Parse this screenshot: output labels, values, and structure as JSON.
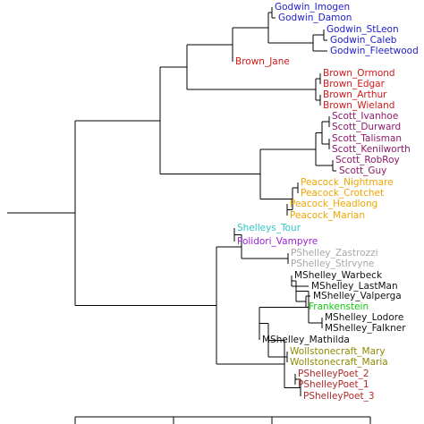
{
  "colors": {
    "Godwin": "#1c1ccc",
    "Brown": "#d11a1a",
    "Scott": "#8b1a6b",
    "Peacock": "#f0a500",
    "Shelleys": "#33c6c6",
    "Polidori": "#9b1fd6",
    "PShelleyProse": "#a8a8a8",
    "MShelley": "#111111",
    "Frankenstein": "#11cc11",
    "Wollstonecraft": "#8f8a00",
    "PShelleyPoet": "#b02a2a",
    "line": "#000000"
  },
  "tree": {
    "leaves": [
      {
        "label": "Godwin_Imogen",
        "group": "Godwin"
      },
      {
        "label": "Godwin_Damon",
        "group": "Godwin"
      },
      {
        "label": "Godwin_StLeon",
        "group": "Godwin"
      },
      {
        "label": "Godwin_Caleb",
        "group": "Godwin"
      },
      {
        "label": "Godwin_Fleetwood",
        "group": "Godwin"
      },
      {
        "label": "Brown_Jane",
        "group": "Brown"
      },
      {
        "label": "Brown_Ormond",
        "group": "Brown"
      },
      {
        "label": "Brown_Edgar",
        "group": "Brown"
      },
      {
        "label": "Brown_Arthur",
        "group": "Brown"
      },
      {
        "label": "Brown_Wieland",
        "group": "Brown"
      },
      {
        "label": "Scott_Ivanhoe",
        "group": "Scott"
      },
      {
        "label": "Scott_Durward",
        "group": "Scott"
      },
      {
        "label": "Scott_Talisman",
        "group": "Scott"
      },
      {
        "label": "Scott_Kenilworth",
        "group": "Scott"
      },
      {
        "label": "Scott_RobRoy",
        "group": "Scott"
      },
      {
        "label": "Scott_Guy",
        "group": "Scott"
      },
      {
        "label": "Peacock_Nightmare",
        "group": "Peacock"
      },
      {
        "label": "Peacock_Crotchet",
        "group": "Peacock"
      },
      {
        "label": "Peacock_Headlong",
        "group": "Peacock"
      },
      {
        "label": "Peacock_Marian",
        "group": "Peacock"
      },
      {
        "label": "Shelleys_Tour",
        "group": "Shelleys"
      },
      {
        "label": "Polidori_Vampyre",
        "group": "Polidori"
      },
      {
        "label": "PShelley_Zastrozzi",
        "group": "PShelleyProse"
      },
      {
        "label": "PShelley_StIrvyne",
        "group": "PShelleyProse"
      },
      {
        "label": "MShelley_Warbeck",
        "group": "MShelley"
      },
      {
        "label": "MShelley_LastMan",
        "group": "MShelley"
      },
      {
        "label": "MShelley_Valperga",
        "group": "MShelley"
      },
      {
        "label": "Frankenstein",
        "group": "Frankenstein"
      },
      {
        "label": "MShelley_Lodore",
        "group": "MShelley"
      },
      {
        "label": "MShelley_Falkner",
        "group": "MShelley"
      },
      {
        "label": "MShelley_Mathilda",
        "group": "MShelley"
      },
      {
        "label": "Wollstonecraft_Mary",
        "group": "Wollstonecraft"
      },
      {
        "label": "Wollstonecraft_Maria",
        "group": "Wollstonecraft"
      },
      {
        "label": "PShelleyPoet_2",
        "group": "PShelleyPoet"
      },
      {
        "label": "PShelleyPoet_1",
        "group": "PShelleyPoet"
      },
      {
        "label": "PShelleyPoet_3",
        "group": "PShelleyPoet"
      }
    ]
  }
}
